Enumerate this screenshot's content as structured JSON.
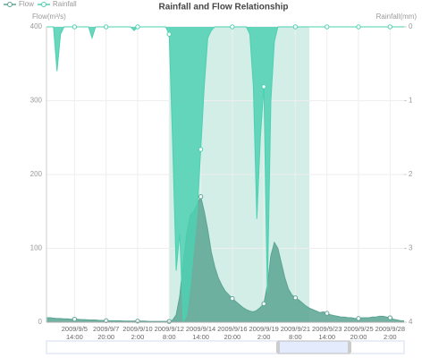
{
  "chart_data": {
    "type": "line",
    "title": "Rainfall and Flow Relationship",
    "y_label": "Flow(m³/s)",
    "y2_label": "Rainfall(mm)",
    "categories": [
      null,
      null,
      null,
      null,
      null,
      null,
      null,
      null,
      "2009/9/5\n14:00",
      null,
      null,
      null,
      null,
      null,
      null,
      null,
      null,
      "2009/9/7\n20:00",
      null,
      null,
      null,
      null,
      null,
      null,
      null,
      null,
      "2009/9/10\n2:00",
      null,
      null,
      null,
      null,
      null,
      null,
      null,
      null,
      "2009/9/12\n8:00",
      null,
      null,
      null,
      null,
      null,
      null,
      null,
      null,
      "2009/9/14\n14:00",
      null,
      null,
      null,
      null,
      null,
      null,
      null,
      null,
      "2009/9/16\n20:00",
      null,
      null,
      null,
      null,
      null,
      null,
      null,
      null,
      "2009/9/19\n2:00",
      null,
      null,
      null,
      null,
      null,
      null,
      null,
      null,
      "2009/9/21\n8:00",
      null,
      null,
      null,
      null,
      null,
      null,
      null,
      null,
      "2009/9/23\n14:00",
      null,
      null,
      null,
      null,
      null,
      null,
      null,
      null,
      "2009/9/25\n20:00",
      null,
      null,
      null,
      null,
      null,
      null,
      null,
      null,
      "2009/9/28\n2:00",
      null,
      null,
      null,
      null
    ],
    "series": [
      {
        "name": "Flow",
        "color": "#5aa493",
        "values": [
          6,
          6,
          5.5,
          5,
          5,
          4.5,
          4.5,
          4,
          4,
          4,
          3.5,
          3.5,
          3,
          3,
          3,
          2.5,
          2.5,
          2,
          2,
          2,
          2,
          2,
          1.5,
          1.5,
          1.5,
          1.5,
          1.5,
          1.5,
          1.5,
          1,
          1,
          1,
          1,
          1,
          1,
          1,
          3,
          10,
          35,
          80,
          120,
          145,
          150,
          160,
          170,
          150,
          125,
          95,
          75,
          60,
          50,
          42,
          37,
          32,
          28,
          24,
          20,
          17,
          15,
          14,
          16,
          20,
          25,
          50,
          90,
          108,
          100,
          80,
          60,
          45,
          37,
          33,
          30,
          26,
          22,
          19,
          17,
          15,
          13,
          14,
          12,
          10,
          9,
          8,
          7,
          7,
          6,
          6,
          5,
          5,
          6,
          6,
          6,
          7,
          7,
          8,
          8,
          7,
          6,
          4,
          3,
          2,
          2
        ]
      },
      {
        "name": "Rainfall",
        "color": "#4dd0b2",
        "axis": "y2",
        "values": [
          0,
          0,
          0,
          0.6,
          0.1,
          0,
          0,
          0,
          0,
          0,
          0,
          0,
          0,
          0.15,
          0,
          0,
          0,
          0,
          0,
          0,
          0,
          0,
          0,
          0,
          0,
          0.05,
          0,
          0,
          0,
          0,
          0,
          0,
          0,
          0,
          0,
          0.1,
          1.6,
          3.3,
          2.8,
          4,
          3.9,
          3.5,
          3,
          2.5,
          1.66,
          0.8,
          0.15,
          0.05,
          0,
          0,
          0,
          0,
          0,
          0,
          0,
          0,
          0,
          0,
          0.1,
          0.8,
          2.6,
          1.5,
          0.81,
          3.6,
          1,
          0.2,
          0,
          0,
          0,
          0,
          0,
          0,
          0,
          0,
          0,
          0,
          0,
          0,
          0,
          0,
          0,
          0,
          0,
          0,
          0,
          0,
          0,
          0,
          0,
          0,
          0,
          0,
          0,
          0,
          0,
          0,
          0,
          0,
          0,
          0,
          0,
          0,
          0
        ]
      }
    ],
    "ylim": [
      0,
      400
    ],
    "yticks": [
      0,
      100,
      200,
      300,
      400
    ],
    "y2lim": [
      0,
      4
    ],
    "y2ticks": [
      0,
      1,
      2,
      3,
      4
    ],
    "y2_inverse": true,
    "mark_area_color": "#d3eee6",
    "mark_area": [
      35,
      75
    ],
    "grid": true
  }
}
